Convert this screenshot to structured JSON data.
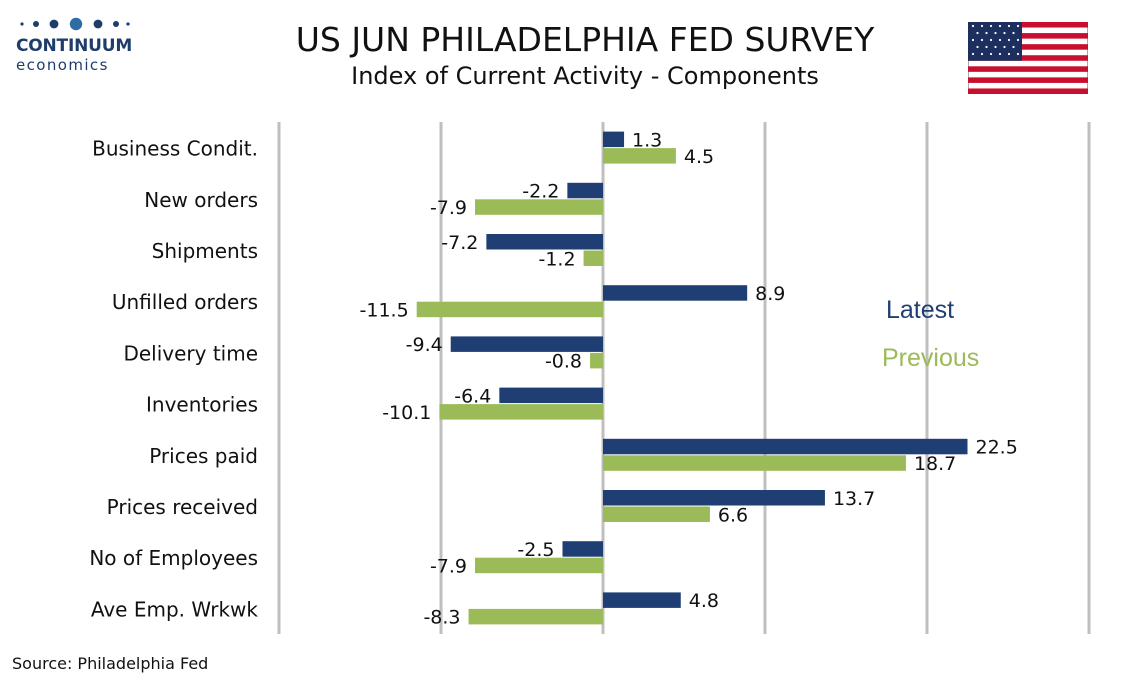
{
  "logo": {
    "name": "CONTINUUM",
    "sub": "economics",
    "color": "#1f3d6b"
  },
  "chart_data": {
    "type": "bar",
    "orientation": "horizontal",
    "title": "US JUN PHILADELPHIA FED SURVEY",
    "subtitle": "Index of Current Activity - Components",
    "categories": [
      "Business Condit.",
      "New orders",
      "Shipments",
      "Unfilled orders",
      "Delivery time",
      "Inventories",
      "Prices paid",
      "Prices received",
      "No of Employees",
      "Ave Emp. Wrkwk"
    ],
    "series": [
      {
        "name": "Latest",
        "color": "#1f3f74",
        "values": [
          1.3,
          -2.2,
          -7.2,
          8.9,
          -9.4,
          -6.4,
          22.5,
          13.7,
          -2.5,
          4.8
        ]
      },
      {
        "name": "Previous",
        "color": "#9bbb59",
        "values": [
          4.5,
          -7.9,
          -1.2,
          -11.5,
          -0.8,
          -10.1,
          18.7,
          6.6,
          -7.9,
          -8.3
        ]
      }
    ],
    "xlim": [
      -20,
      30
    ],
    "grid": true,
    "gridlines": [
      -20,
      -10,
      0,
      10,
      20,
      30
    ],
    "legend_position": "right",
    "source": "Source: Philadelphia Fed"
  }
}
